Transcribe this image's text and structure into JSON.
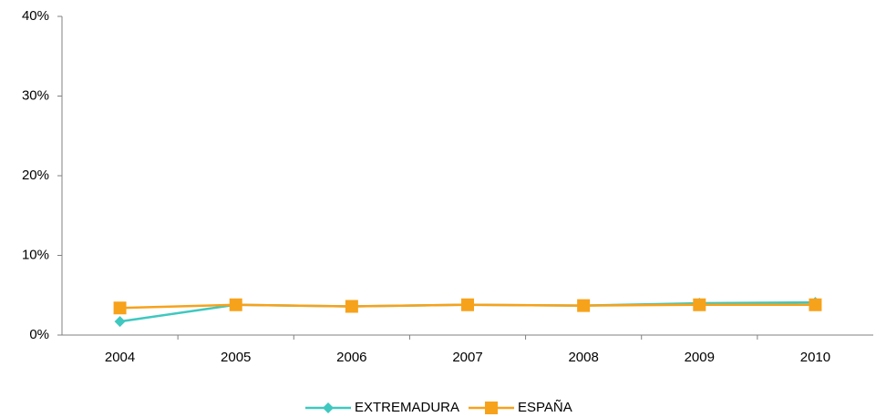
{
  "chart_data": {
    "type": "line",
    "categories": [
      "2004",
      "2005",
      "2006",
      "2007",
      "2008",
      "2009",
      "2010"
    ],
    "series": [
      {
        "name": "EXTREMADURA",
        "color": "#3ec8c0",
        "marker": "diamond",
        "values": [
          1.7,
          3.8,
          3.6,
          3.8,
          3.7,
          4.0,
          4.1
        ]
      },
      {
        "name": "ESPAÑA",
        "color": "#f7a21b",
        "marker": "square",
        "values": [
          3.4,
          3.8,
          3.6,
          3.8,
          3.7,
          3.8,
          3.8
        ]
      }
    ],
    "ylim": [
      0,
      40
    ],
    "yticks": [
      {
        "value": 0,
        "label": "0%"
      },
      {
        "value": 10,
        "label": "10%"
      },
      {
        "value": 20,
        "label": "20%"
      },
      {
        "value": 30,
        "label": "30%"
      },
      {
        "value": 40,
        "label": "40%"
      }
    ],
    "grid": false,
    "legend": "bottom"
  }
}
